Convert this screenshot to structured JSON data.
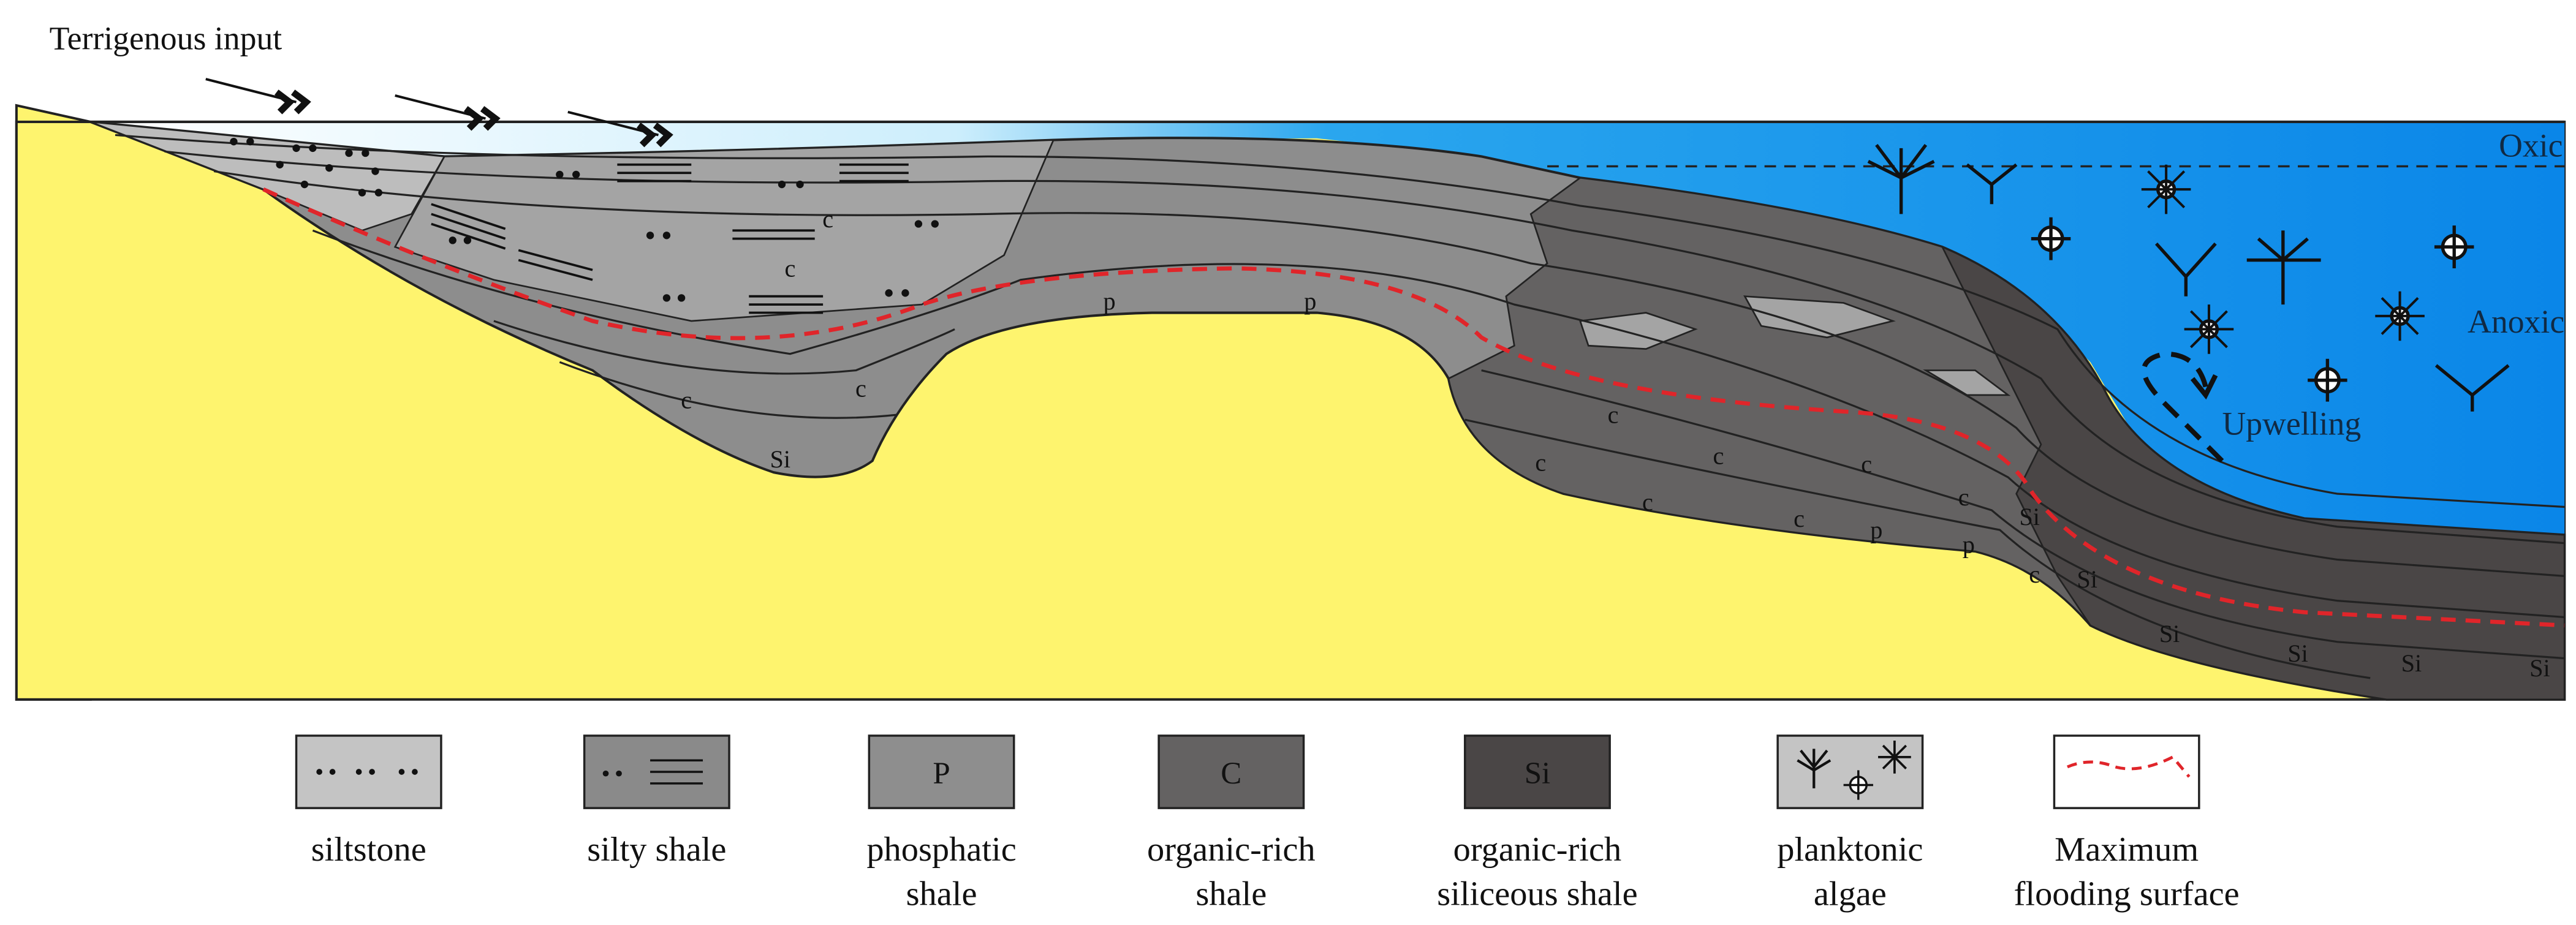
{
  "annotations": {
    "terrigenous_input": "Terrigenous input",
    "oxic": "Oxic",
    "anoxic": "Anoxic",
    "upwelling": "Upwelling"
  },
  "section_labels": [
    "c",
    "c",
    "p",
    "p",
    "c",
    "c",
    "Si",
    "c",
    "c",
    "c",
    "c",
    "c",
    "c",
    "p",
    "c",
    "p",
    "Si",
    "c",
    "Si",
    "Si",
    "Si",
    "Si",
    "Si"
  ],
  "legend": [
    {
      "label": [
        "siltstone"
      ]
    },
    {
      "label": [
        "silty shale"
      ]
    },
    {
      "symbol": "P",
      "label": [
        "phosphatic",
        "shale"
      ]
    },
    {
      "symbol": "C",
      "label": [
        "organic-rich",
        "shale"
      ]
    },
    {
      "symbol": "Si",
      "label": [
        "organic-rich",
        "siliceous shale"
      ]
    },
    {
      "label": [
        "planktonic",
        "algae"
      ]
    },
    {
      "label": [
        "Maximum",
        "flooding surface"
      ]
    }
  ]
}
